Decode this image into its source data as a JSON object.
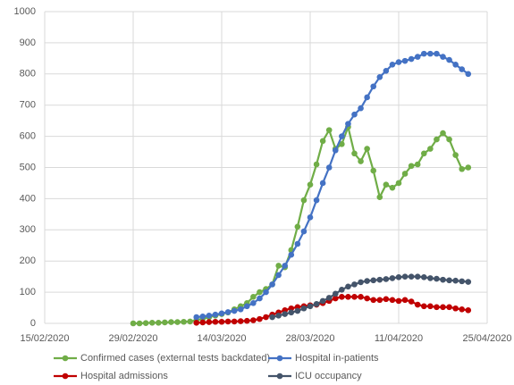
{
  "chart_data": {
    "type": "line",
    "x": [
      "2020-02-29",
      "2020-03-01",
      "2020-03-02",
      "2020-03-03",
      "2020-03-04",
      "2020-03-05",
      "2020-03-06",
      "2020-03-07",
      "2020-03-08",
      "2020-03-09",
      "2020-03-10",
      "2020-03-11",
      "2020-03-12",
      "2020-03-13",
      "2020-03-14",
      "2020-03-15",
      "2020-03-16",
      "2020-03-17",
      "2020-03-18",
      "2020-03-19",
      "2020-03-20",
      "2020-03-21",
      "2020-03-22",
      "2020-03-23",
      "2020-03-24",
      "2020-03-25",
      "2020-03-26",
      "2020-03-27",
      "2020-03-28",
      "2020-03-29",
      "2020-03-30",
      "2020-03-31",
      "2020-04-01",
      "2020-04-02",
      "2020-04-03",
      "2020-04-04",
      "2020-04-05",
      "2020-04-06",
      "2020-04-07",
      "2020-04-08",
      "2020-04-09",
      "2020-04-10",
      "2020-04-11",
      "2020-04-12",
      "2020-04-13",
      "2020-04-14",
      "2020-04-15",
      "2020-04-16",
      "2020-04-17",
      "2020-04-18",
      "2020-04-19",
      "2020-04-20",
      "2020-04-21",
      "2020-04-22"
    ],
    "series": [
      {
        "name": "Confirmed cases (external tests backdated)",
        "color": "#70ad47",
        "values": [
          0,
          0,
          1,
          2,
          2,
          3,
          4,
          4,
          5,
          6,
          10,
          15,
          20,
          25,
          30,
          35,
          45,
          55,
          65,
          85,
          100,
          110,
          125,
          185,
          180,
          235,
          310,
          395,
          445,
          510,
          585,
          620,
          560,
          575,
          630,
          545,
          520,
          560,
          490,
          405,
          445,
          435,
          450,
          480,
          505,
          510,
          545,
          560,
          590,
          610,
          590,
          540,
          495,
          500
        ]
      },
      {
        "name": "Hospital in-patients",
        "color": "#4472c4",
        "values": [
          null,
          null,
          null,
          null,
          null,
          null,
          null,
          null,
          null,
          null,
          20,
          22,
          25,
          28,
          32,
          36,
          40,
          45,
          55,
          65,
          80,
          100,
          125,
          155,
          185,
          220,
          255,
          295,
          340,
          395,
          450,
          500,
          555,
          600,
          640,
          670,
          690,
          725,
          760,
          790,
          810,
          830,
          838,
          842,
          848,
          855,
          865,
          865,
          865,
          855,
          845,
          830,
          815,
          800
        ]
      },
      {
        "name": "Hospital admissions",
        "color": "#c00000",
        "values": [
          null,
          null,
          null,
          null,
          null,
          null,
          null,
          null,
          null,
          null,
          2,
          3,
          4,
          5,
          5,
          6,
          6,
          7,
          8,
          10,
          14,
          20,
          28,
          35,
          42,
          48,
          52,
          55,
          58,
          60,
          65,
          72,
          80,
          85,
          85,
          85,
          85,
          80,
          75,
          75,
          78,
          75,
          72,
          75,
          70,
          60,
          55,
          55,
          52,
          52,
          52,
          48,
          45,
          42
        ]
      },
      {
        "name": "ICU occupancy",
        "color": "#44546a",
        "values": [
          null,
          null,
          null,
          null,
          null,
          null,
          null,
          null,
          null,
          null,
          null,
          null,
          null,
          null,
          null,
          null,
          null,
          null,
          null,
          null,
          null,
          null,
          20,
          25,
          30,
          35,
          40,
          48,
          55,
          62,
          72,
          82,
          95,
          108,
          118,
          125,
          132,
          136,
          138,
          140,
          142,
          145,
          148,
          150,
          150,
          150,
          148,
          145,
          143,
          140,
          138,
          137,
          135,
          133
        ]
      }
    ],
    "xlim": [
      "2020-02-15",
      "2020-04-25"
    ],
    "xticks": [
      {
        "value": "2020-02-15",
        "label": "15/02/2020"
      },
      {
        "value": "2020-02-29",
        "label": "29/02/2020"
      },
      {
        "value": "2020-03-14",
        "label": "14/03/2020"
      },
      {
        "value": "2020-03-28",
        "label": "28/03/2020"
      },
      {
        "value": "2020-04-11",
        "label": "11/04/2020"
      },
      {
        "value": "2020-04-25",
        "label": "25/04/2020"
      }
    ],
    "ylim": [
      0,
      1000
    ],
    "yticks": [
      0,
      100,
      200,
      300,
      400,
      500,
      600,
      700,
      800,
      900,
      1000
    ],
    "grid": true,
    "legend": "bottom"
  }
}
